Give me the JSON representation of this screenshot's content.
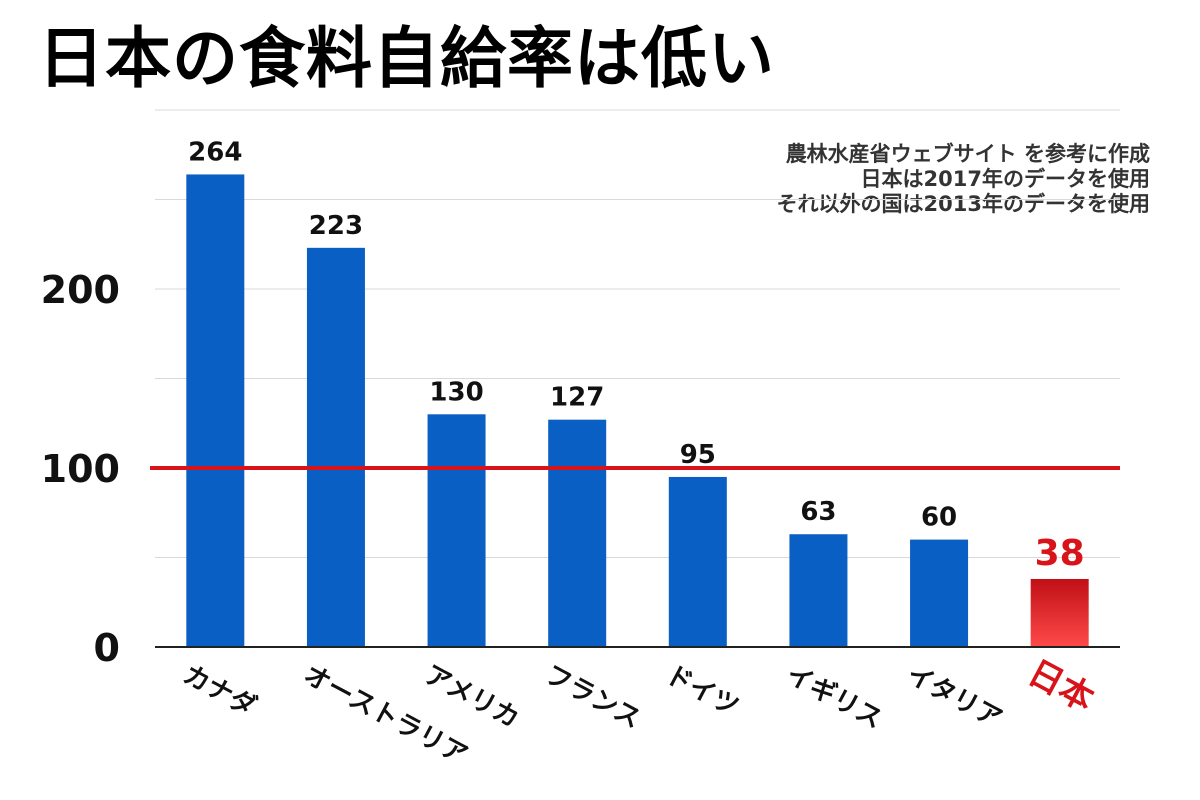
{
  "title": "日本の食料自給率は低い",
  "note_lines": [
    "農林水産省ウェブサイト を参考に作成",
    "日本は2017年のデータを使用",
    "それ以外の国は2013年のデータを使用"
  ],
  "colors": {
    "bar": "#0a5fc4",
    "highlight": "#d8141a",
    "reference_line": "#d8141a",
    "grid": "#d9d9d9",
    "axis": "#222222"
  },
  "chart_data": {
    "type": "bar",
    "categories": [
      "カナダ",
      "オーストラリア",
      "アメリカ",
      "フランス",
      "ドイツ",
      "イギリス",
      "イタリア",
      "日本"
    ],
    "values": [
      264,
      223,
      130,
      127,
      95,
      63,
      60,
      38
    ],
    "labels": [
      "264",
      "223",
      "130",
      "127",
      "95",
      "63",
      "60",
      "38"
    ],
    "highlight_category": "日本",
    "y_ticks": [
      0,
      100,
      200
    ],
    "ylim": [
      0,
      300
    ],
    "reference_line": 100,
    "grid": true
  }
}
